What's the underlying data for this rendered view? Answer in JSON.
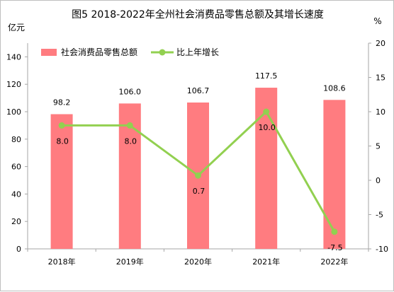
{
  "chart_data": {
    "type": "bar",
    "title": "图5 2018-2022年全州社会消费品零售总额及其增长速度",
    "left_unit": "亿元",
    "right_unit": "%",
    "categories": [
      "2018年",
      "2019年",
      "2020年",
      "2021年",
      "2022年"
    ],
    "left_ticks": [
      "0",
      "20",
      "40",
      "60",
      "80",
      "100",
      "120",
      "140"
    ],
    "right_ticks": [
      "20",
      "15",
      "10",
      "5",
      "0",
      "-5",
      "-10"
    ],
    "ylim_left": [
      0,
      150
    ],
    "ylim_right": [
      -10,
      20
    ],
    "legend_position": "top-left",
    "grid": false,
    "series": [
      {
        "name": "社会消费品零售总额",
        "type": "bar",
        "axis": "left",
        "color": "#ff7c80",
        "values": [
          98.2,
          106.0,
          106.7,
          117.5,
          108.6
        ],
        "labels": [
          "98.2",
          "106.0",
          "106.7",
          "117.5",
          "108.6"
        ]
      },
      {
        "name": "比上年增长",
        "type": "line",
        "axis": "right",
        "color": "#92d050",
        "values": [
          8.0,
          8.0,
          0.7,
          10.0,
          -7.5
        ],
        "labels": [
          "8.0",
          "8.0",
          "0.7",
          "10.0",
          "-7.5"
        ]
      }
    ]
  }
}
